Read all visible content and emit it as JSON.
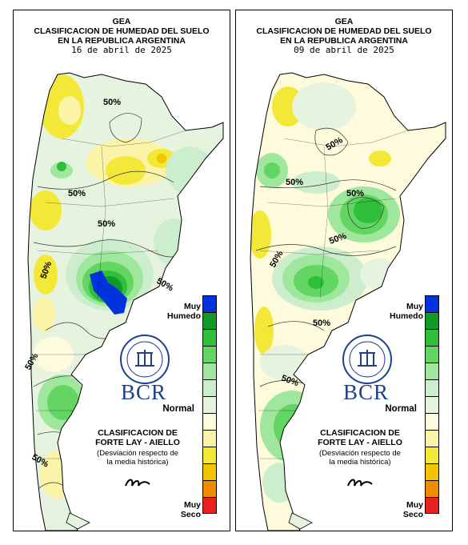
{
  "panels": [
    {
      "title_line1": "GEA",
      "title_line2": "CLASIFICACION DE HUMEDAD DEL SUELO",
      "title_line3": "EN LA REPUBLICA ARGENTINA",
      "date": "16 de abril de 2025",
      "contour_labels": [
        "50%",
        "50%",
        "50%",
        "50%",
        "50%",
        "50%",
        "50%"
      ]
    },
    {
      "title_line1": "GEA",
      "title_line2": "CLASIFICACION DE HUMEDAD DEL SUELO",
      "title_line3": "EN LA REPUBLICA ARGENTINA",
      "date": "09 de abril de 2025",
      "contour_labels": [
        "50%",
        "50%",
        "50%",
        "50%",
        "50%",
        "50%"
      ]
    }
  ],
  "legend": {
    "top_label_1": "Muy",
    "top_label_2": "Humedo",
    "mid_label": "Normal",
    "bottom_label_1": "Muy",
    "bottom_label_2": "Seco",
    "colors": [
      "#0033dd",
      "#129a29",
      "#2fbf3a",
      "#63d563",
      "#9fe79c",
      "#cdeecd",
      "#e6f3df",
      "#fdfbdc",
      "#fbf3a8",
      "#f3e838",
      "#f2c500",
      "#ef8b00",
      "#e82020"
    ]
  },
  "branding": {
    "logo_text": "BCR",
    "classification_line1": "CLASIFICACION DE",
    "classification_line2": "FORTE LAY - AIELLO",
    "note_line1": "(Desviación respecto de",
    "note_line2": "la media histórica)"
  }
}
